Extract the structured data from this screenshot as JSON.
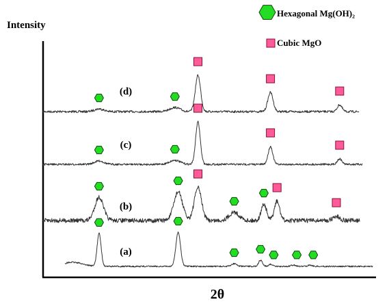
{
  "chart_data": {
    "type": "line",
    "title": "",
    "xlabel": "2θ",
    "ylabel": "Intensity",
    "xlim": [
      0,
      100
    ],
    "grid": false,
    "legend_placement": "top-right",
    "legend": [
      {
        "label": "Hexagonal Mg(OH)₂",
        "marker": "hexagon",
        "color": "#22dd22"
      },
      {
        "label": "Cubic MgO",
        "marker": "square",
        "color": "#ff5a9a"
      }
    ],
    "series": [
      {
        "name": "(d)",
        "baseline": 0.0,
        "peaks": [
          {
            "x": 17,
            "h": 4,
            "w": 1.4,
            "phase": "Mg(OH)2"
          },
          {
            "x": 40,
            "h": 6,
            "w": 1.6,
            "phase": "Mg(OH)2"
          },
          {
            "x": 47,
            "h": 53,
            "w": 0.8,
            "phase": "MgO"
          },
          {
            "x": 69,
            "h": 28,
            "w": 0.8,
            "phase": "MgO"
          },
          {
            "x": 90,
            "h": 10,
            "w": 0.7,
            "phase": "MgO"
          }
        ],
        "hexagon_markers": [
          17,
          40
        ],
        "square_markers": [
          47,
          69,
          90
        ]
      },
      {
        "name": "(c)",
        "baseline": 0.0,
        "peaks": [
          {
            "x": 17,
            "h": 5,
            "w": 1.4,
            "phase": "Mg(OH)2"
          },
          {
            "x": 40,
            "h": 6,
            "w": 1.6,
            "phase": "Mg(OH)2"
          },
          {
            "x": 47,
            "h": 62,
            "w": 0.7,
            "phase": "MgO"
          },
          {
            "x": 69,
            "h": 26,
            "w": 0.7,
            "phase": "MgO"
          },
          {
            "x": 90,
            "h": 8,
            "w": 0.7,
            "phase": "MgO"
          }
        ],
        "hexagon_markers": [
          17,
          40
        ],
        "square_markers": [
          47,
          69,
          90
        ]
      },
      {
        "name": "(b)",
        "baseline": 0.0,
        "peaks": [
          {
            "x": 17,
            "h": 34,
            "w": 1.3,
            "phase": "Mg(OH)2"
          },
          {
            "x": 41,
            "h": 42,
            "w": 1.3,
            "phase": "Mg(OH)2"
          },
          {
            "x": 47,
            "h": 48,
            "w": 1.1,
            "phase": "MgO"
          },
          {
            "x": 58,
            "h": 12,
            "w": 1.5,
            "phase": "Mg(OH)2"
          },
          {
            "x": 67,
            "h": 24,
            "w": 0.8,
            "phase": "Mg(OH)2"
          },
          {
            "x": 71,
            "h": 28,
            "w": 0.8,
            "phase": "MgO"
          },
          {
            "x": 89,
            "h": 6,
            "w": 1.0,
            "phase": "MgO"
          }
        ],
        "hexagon_markers": [
          17,
          41,
          58,
          67
        ],
        "square_markers": [
          47,
          71,
          89
        ]
      },
      {
        "name": "(a)",
        "baseline": 0.0,
        "peaks": [
          {
            "x": 9,
            "h": 6,
            "w": 3.0,
            "phase": ""
          },
          {
            "x": 17,
            "h": 48,
            "w": 0.6,
            "phase": "Mg(OH)2"
          },
          {
            "x": 41,
            "h": 50,
            "w": 0.7,
            "phase": "Mg(OH)2"
          },
          {
            "x": 58,
            "h": 4,
            "w": 0.8,
            "phase": "Mg(OH)2"
          },
          {
            "x": 66,
            "h": 9,
            "w": 0.6,
            "phase": "Mg(OH)2"
          },
          {
            "x": 69,
            "h": 3,
            "w": 0.6,
            "phase": "Mg(OH)2"
          },
          {
            "x": 76,
            "h": 2,
            "w": 0.7,
            "phase": "Mg(OH)2"
          },
          {
            "x": 81,
            "h": 2,
            "w": 0.7,
            "phase": "Mg(OH)2"
          }
        ],
        "hexagon_markers": [
          17,
          41,
          58,
          66,
          70,
          77,
          82
        ],
        "square_markers": []
      }
    ]
  }
}
